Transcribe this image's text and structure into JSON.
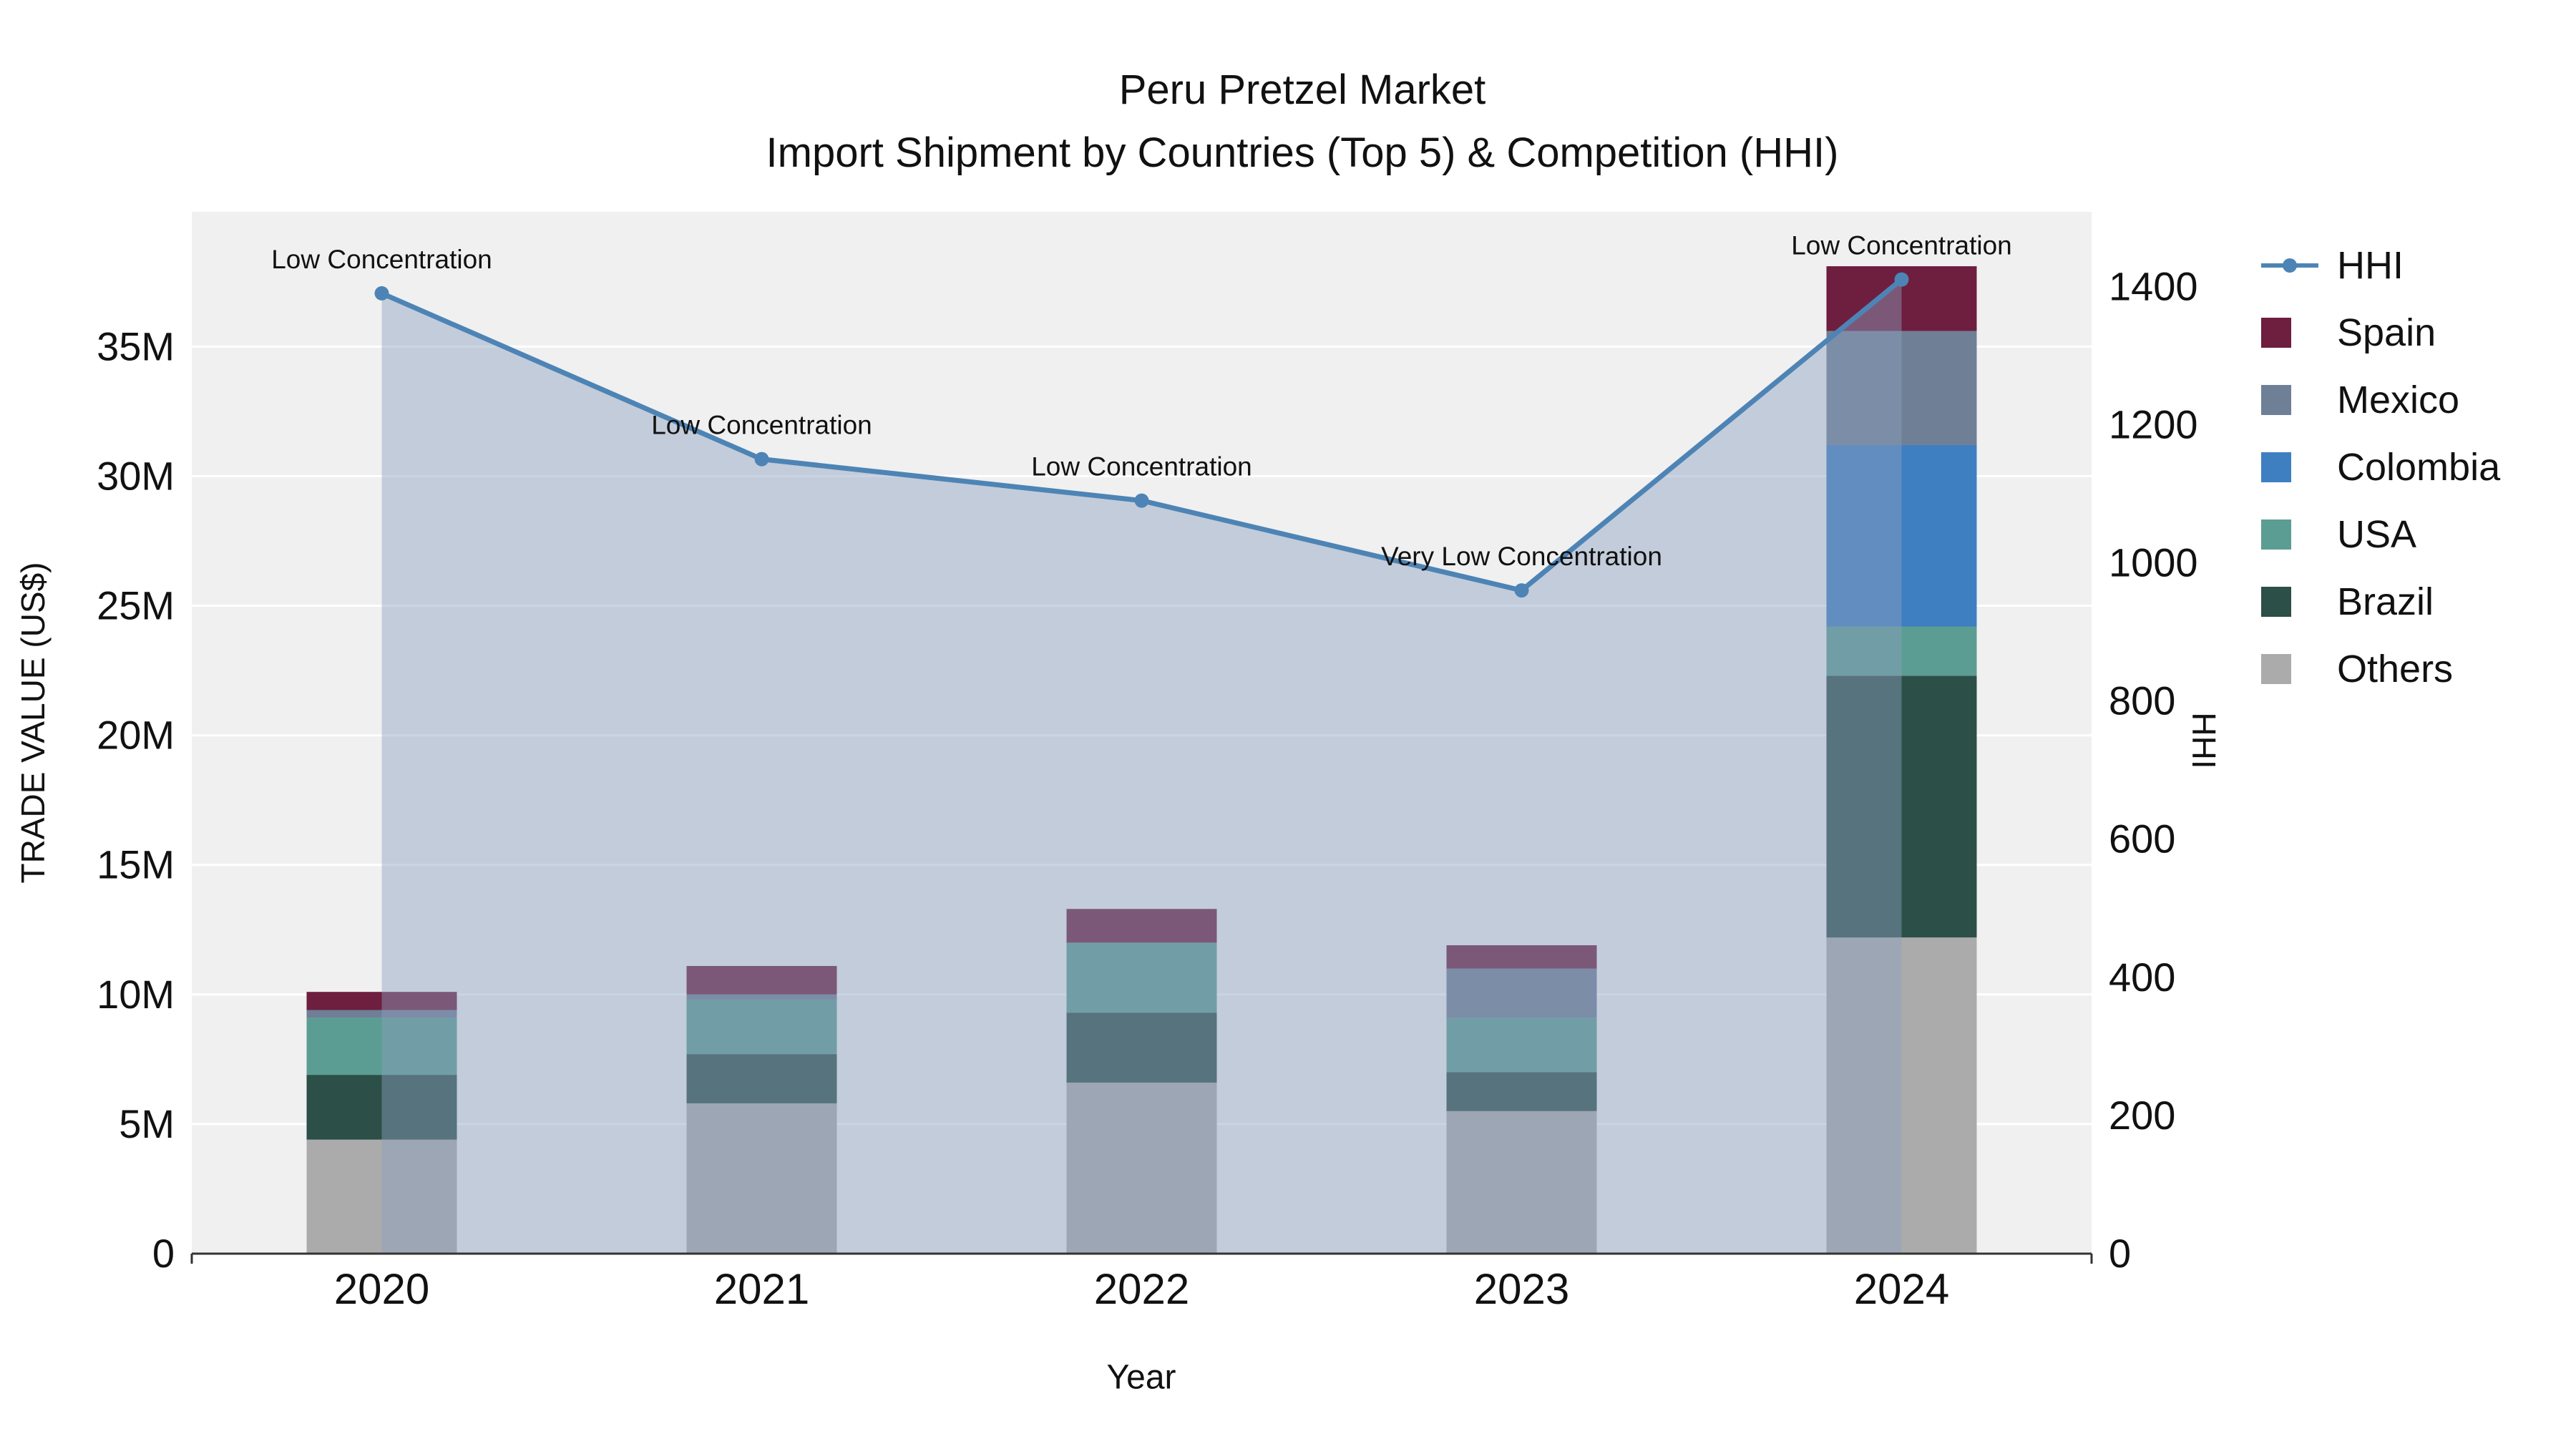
{
  "title": {
    "line1": "Peru Pretzel Market",
    "line2": "Import Shipment by Countries (Top 5) & Competition (HHI)"
  },
  "axes": {
    "y_left_label": "TRADE VALUE (US$)",
    "y_right_label": "HHI",
    "x_label": "Year"
  },
  "chart_data": {
    "type": "bar+line",
    "categories": [
      "2020",
      "2021",
      "2022",
      "2023",
      "2024"
    ],
    "bar_unit": "millions USD",
    "bar_stack_order_bottom_to_top": [
      "Others",
      "Brazil",
      "USA",
      "Colombia",
      "Mexico",
      "Spain"
    ],
    "bar_series": [
      {
        "name": "Others",
        "color": "#ababab",
        "values": [
          4.4,
          5.8,
          6.6,
          5.5,
          12.2
        ]
      },
      {
        "name": "Brazil",
        "color": "#2c4f47",
        "values": [
          2.5,
          1.9,
          2.7,
          1.5,
          10.1
        ]
      },
      {
        "name": "USA",
        "color": "#5b9d93",
        "values": [
          2.2,
          2.1,
          2.7,
          2.1,
          1.9
        ]
      },
      {
        "name": "Colombia",
        "color": "#3e7fc1",
        "values": [
          0,
          0,
          0,
          0,
          7.0
        ]
      },
      {
        "name": "Mexico",
        "color": "#6f7f96",
        "values": [
          0.3,
          0.2,
          0,
          1.9,
          4.4
        ]
      },
      {
        "name": "Spain",
        "color": "#6e1e3f",
        "values": [
          0.7,
          1.1,
          1.3,
          0.9,
          2.5
        ]
      }
    ],
    "line_series": {
      "name": "HHI",
      "color": "#4d84b5",
      "fill": "rgba(140,160,190,0.45)",
      "values": [
        1390,
        1150,
        1090,
        960,
        1410
      ]
    },
    "annotations": [
      "Low Concentration",
      "Low Concentration",
      "Low Concentration",
      "Very Low Concentration",
      "Low Concentration"
    ],
    "y_left": {
      "ticks": [
        "0",
        "5M",
        "10M",
        "15M",
        "20M",
        "25M",
        "30M",
        "35M"
      ],
      "tick_values": [
        0,
        5,
        10,
        15,
        20,
        25,
        30,
        35
      ],
      "max": 40.2
    },
    "y_right": {
      "ticks": [
        "0",
        "200",
        "400",
        "600",
        "800",
        "1000",
        "1200",
        "1400"
      ],
      "tick_values": [
        0,
        200,
        400,
        600,
        800,
        1000,
        1200,
        1400
      ],
      "max": 1508
    },
    "grid": "horizontal-white",
    "legend_position": "right"
  },
  "legend": {
    "items": [
      {
        "label": "HHI",
        "type": "line",
        "color": "#4d84b5"
      },
      {
        "label": "Spain",
        "type": "swatch",
        "color": "#6e1e3f"
      },
      {
        "label": "Mexico",
        "type": "swatch",
        "color": "#6f7f96"
      },
      {
        "label": "Colombia",
        "type": "swatch",
        "color": "#3e7fc1"
      },
      {
        "label": "USA",
        "type": "swatch",
        "color": "#5b9d93"
      },
      {
        "label": "Brazil",
        "type": "swatch",
        "color": "#2c4f47"
      },
      {
        "label": "Others",
        "type": "swatch",
        "color": "#ababab"
      }
    ]
  },
  "style": {
    "plot_bg": "#f0f0f0",
    "axis_color": "#333333",
    "text_color": "#111111"
  }
}
